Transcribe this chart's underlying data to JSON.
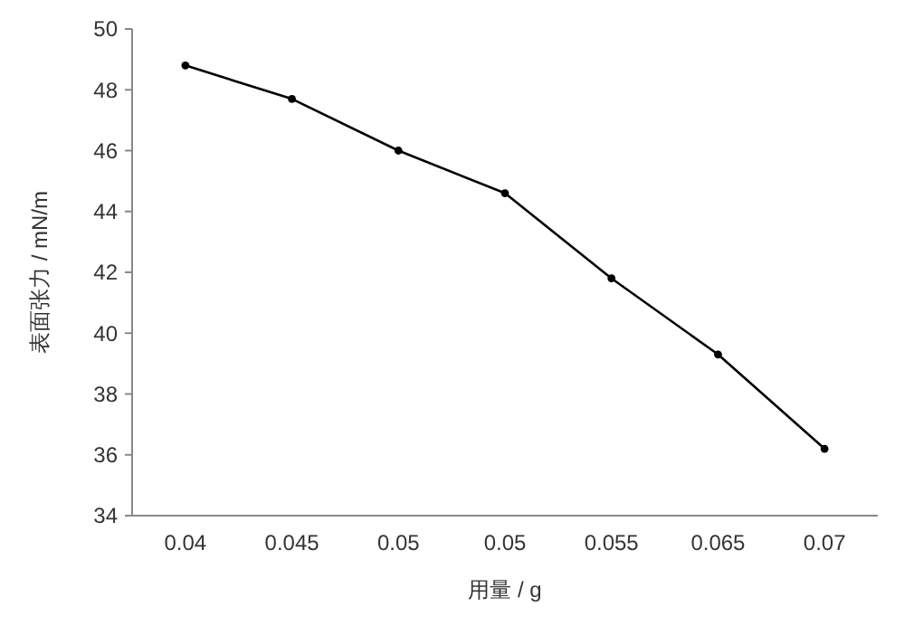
{
  "chart_data": {
    "type": "line",
    "xlabel": "用量 / g",
    "ylabel": "表面张力 / mN/m",
    "categories": [
      "0.04",
      "0.045",
      "0.05",
      "0.05",
      "0.055",
      "0.065",
      "0.07"
    ],
    "series": [
      {
        "color": "#000000",
        "values": [
          48.8,
          47.7,
          46.0,
          44.6,
          41.8,
          39.3,
          36.2
        ]
      }
    ],
    "ylim": [
      34,
      50
    ],
    "yticks": [
      34,
      36,
      38,
      40,
      42,
      44,
      46,
      48,
      50
    ],
    "marker": "circle",
    "line_style": "solid",
    "grid": false
  }
}
